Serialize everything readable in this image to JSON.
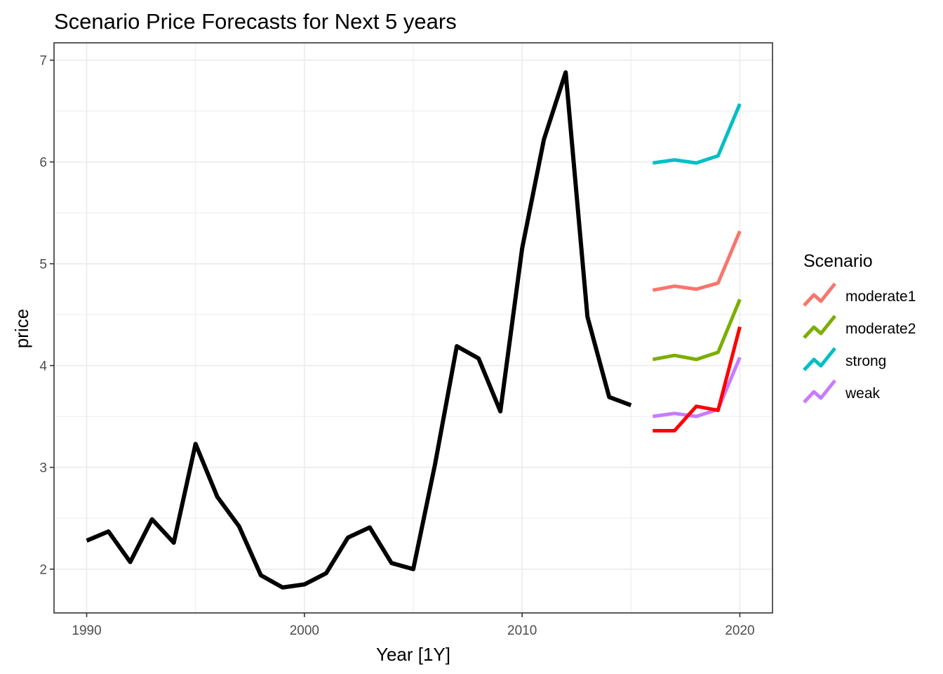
{
  "chart_data": {
    "type": "line",
    "title": "Scenario Price Forecasts for Next 5 years",
    "xlabel": "Year [1Y]",
    "ylabel": "price",
    "xlim": [
      1988.5,
      2021.5
    ],
    "ylim": [
      1.57,
      7.17
    ],
    "x_ticks": [
      1990,
      2000,
      2010,
      2020
    ],
    "x_tick_labels": [
      "1990",
      "2000",
      "2010",
      "2020"
    ],
    "y_ticks": [
      2,
      3,
      4,
      5,
      6,
      7
    ],
    "y_tick_labels": [
      "2",
      "3",
      "4",
      "5",
      "6",
      "7"
    ],
    "grid": true,
    "legend": {
      "title": "Scenario",
      "position": "right"
    },
    "history": {
      "color": "#000000",
      "x": [
        1990,
        1991,
        1992,
        1993,
        1994,
        1995,
        1996,
        1997,
        1998,
        1999,
        2000,
        2001,
        2002,
        2003,
        2004,
        2005,
        2006,
        2007,
        2008,
        2009,
        2010,
        2011,
        2012,
        2013,
        2014,
        2015
      ],
      "values": [
        2.28,
        2.37,
        2.07,
        2.49,
        2.26,
        3.23,
        2.71,
        2.42,
        1.94,
        1.82,
        1.85,
        1.96,
        2.31,
        2.41,
        2.06,
        2.0,
        3.03,
        4.19,
        4.07,
        3.55,
        5.15,
        6.22,
        6.88,
        4.48,
        3.69,
        3.61
      ]
    },
    "forecast_x": [
      2016,
      2017,
      2018,
      2019,
      2020
    ],
    "series": [
      {
        "name": "moderate1",
        "color": "#F8766D",
        "values": [
          4.74,
          4.78,
          4.75,
          4.81,
          5.32
        ]
      },
      {
        "name": "moderate2",
        "color": "#7CAE00",
        "values": [
          4.06,
          4.1,
          4.06,
          4.13,
          4.65
        ]
      },
      {
        "name": "strong",
        "color": "#00BFC4",
        "values": [
          5.99,
          6.02,
          5.99,
          6.06,
          6.57
        ]
      },
      {
        "name": "weak",
        "color": "#C77CFF",
        "values": [
          3.5,
          3.53,
          3.5,
          3.57,
          4.08
        ]
      }
    ],
    "extra_series": {
      "color": "#FF0000",
      "values": [
        3.36,
        3.36,
        3.6,
        3.56,
        4.38
      ]
    }
  }
}
